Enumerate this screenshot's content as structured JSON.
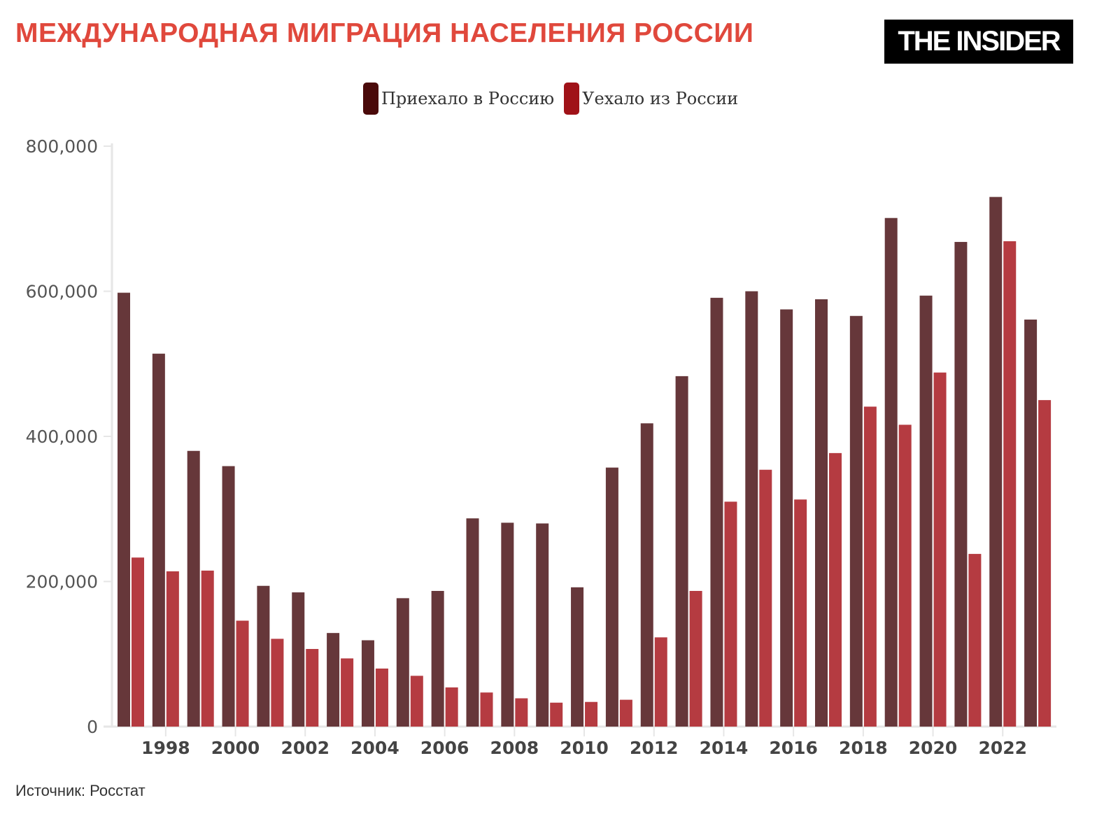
{
  "title": "МЕЖДУНАРОДНАЯ МИГРАЦИЯ НАСЕЛЕНИЯ РОССИИ",
  "logo": "THE INSIDER",
  "source": "Источник: Росстат",
  "colors": {
    "arrived": "#66373a",
    "left": "#b53b41",
    "arrived_legend": "#4a0a0a",
    "left_legend": "#a01218",
    "title": "#e0483c"
  },
  "chart_data": {
    "type": "bar",
    "legend_placement": "top",
    "grid": false,
    "ylim": [
      0,
      800000
    ],
    "yticks": [
      "0",
      "200,000",
      "400,000",
      "600,000",
      "800,000"
    ],
    "ytick_values": [
      0,
      200000,
      400000,
      600000,
      800000
    ],
    "xticks": [
      "1998",
      "2000",
      "2002",
      "2004",
      "2006",
      "2008",
      "2010",
      "2012",
      "2014",
      "2016",
      "2018",
      "2020",
      "2022"
    ],
    "categories": [
      1997,
      1998,
      1999,
      2000,
      2001,
      2002,
      2003,
      2004,
      2005,
      2006,
      2007,
      2008,
      2009,
      2010,
      2011,
      2012,
      2013,
      2014,
      2015,
      2016,
      2017,
      2018,
      2019,
      2020,
      2021,
      2022,
      2023
    ],
    "series": [
      {
        "name": "Приехало в Россию",
        "values": [
          598000,
          514000,
          380000,
          359000,
          194000,
          185000,
          129000,
          119000,
          177000,
          187000,
          287000,
          281000,
          280000,
          192000,
          357000,
          418000,
          483000,
          591000,
          600000,
          575000,
          589000,
          566000,
          701000,
          594000,
          668000,
          730000,
          561000
        ]
      },
      {
        "name": "Уехало из России",
        "values": [
          233000,
          214000,
          215000,
          146000,
          121000,
          107000,
          94000,
          80000,
          70000,
          54000,
          47000,
          39000,
          33000,
          34000,
          37000,
          123000,
          187000,
          310000,
          354000,
          313000,
          377000,
          441000,
          416000,
          488000,
          238000,
          669000,
          450000
        ]
      }
    ]
  }
}
